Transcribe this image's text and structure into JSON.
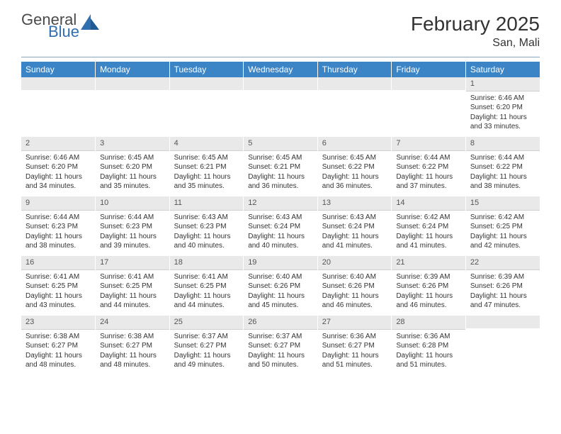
{
  "brand": {
    "line1": "General",
    "line2": "Blue",
    "color1": "#4a4a4a",
    "color2": "#2f6fb0",
    "mark_color": "#2f6fb0"
  },
  "title": "February 2025",
  "location": "San, Mali",
  "colors": {
    "header_bg": "#3b85c6",
    "header_text": "#ffffff",
    "daynum_bg": "#e9e9e9",
    "border": "#8aa6bf"
  },
  "day_headers": [
    "Sunday",
    "Monday",
    "Tuesday",
    "Wednesday",
    "Thursday",
    "Friday",
    "Saturday"
  ],
  "weeks": [
    [
      null,
      null,
      null,
      null,
      null,
      null,
      {
        "n": "1",
        "sr": "Sunrise: 6:46 AM",
        "ss": "Sunset: 6:20 PM",
        "dl": "Daylight: 11 hours and 33 minutes."
      }
    ],
    [
      {
        "n": "2",
        "sr": "Sunrise: 6:46 AM",
        "ss": "Sunset: 6:20 PM",
        "dl": "Daylight: 11 hours and 34 minutes."
      },
      {
        "n": "3",
        "sr": "Sunrise: 6:45 AM",
        "ss": "Sunset: 6:20 PM",
        "dl": "Daylight: 11 hours and 35 minutes."
      },
      {
        "n": "4",
        "sr": "Sunrise: 6:45 AM",
        "ss": "Sunset: 6:21 PM",
        "dl": "Daylight: 11 hours and 35 minutes."
      },
      {
        "n": "5",
        "sr": "Sunrise: 6:45 AM",
        "ss": "Sunset: 6:21 PM",
        "dl": "Daylight: 11 hours and 36 minutes."
      },
      {
        "n": "6",
        "sr": "Sunrise: 6:45 AM",
        "ss": "Sunset: 6:22 PM",
        "dl": "Daylight: 11 hours and 36 minutes."
      },
      {
        "n": "7",
        "sr": "Sunrise: 6:44 AM",
        "ss": "Sunset: 6:22 PM",
        "dl": "Daylight: 11 hours and 37 minutes."
      },
      {
        "n": "8",
        "sr": "Sunrise: 6:44 AM",
        "ss": "Sunset: 6:22 PM",
        "dl": "Daylight: 11 hours and 38 minutes."
      }
    ],
    [
      {
        "n": "9",
        "sr": "Sunrise: 6:44 AM",
        "ss": "Sunset: 6:23 PM",
        "dl": "Daylight: 11 hours and 38 minutes."
      },
      {
        "n": "10",
        "sr": "Sunrise: 6:44 AM",
        "ss": "Sunset: 6:23 PM",
        "dl": "Daylight: 11 hours and 39 minutes."
      },
      {
        "n": "11",
        "sr": "Sunrise: 6:43 AM",
        "ss": "Sunset: 6:23 PM",
        "dl": "Daylight: 11 hours and 40 minutes."
      },
      {
        "n": "12",
        "sr": "Sunrise: 6:43 AM",
        "ss": "Sunset: 6:24 PM",
        "dl": "Daylight: 11 hours and 40 minutes."
      },
      {
        "n": "13",
        "sr": "Sunrise: 6:43 AM",
        "ss": "Sunset: 6:24 PM",
        "dl": "Daylight: 11 hours and 41 minutes."
      },
      {
        "n": "14",
        "sr": "Sunrise: 6:42 AM",
        "ss": "Sunset: 6:24 PM",
        "dl": "Daylight: 11 hours and 41 minutes."
      },
      {
        "n": "15",
        "sr": "Sunrise: 6:42 AM",
        "ss": "Sunset: 6:25 PM",
        "dl": "Daylight: 11 hours and 42 minutes."
      }
    ],
    [
      {
        "n": "16",
        "sr": "Sunrise: 6:41 AM",
        "ss": "Sunset: 6:25 PM",
        "dl": "Daylight: 11 hours and 43 minutes."
      },
      {
        "n": "17",
        "sr": "Sunrise: 6:41 AM",
        "ss": "Sunset: 6:25 PM",
        "dl": "Daylight: 11 hours and 44 minutes."
      },
      {
        "n": "18",
        "sr": "Sunrise: 6:41 AM",
        "ss": "Sunset: 6:25 PM",
        "dl": "Daylight: 11 hours and 44 minutes."
      },
      {
        "n": "19",
        "sr": "Sunrise: 6:40 AM",
        "ss": "Sunset: 6:26 PM",
        "dl": "Daylight: 11 hours and 45 minutes."
      },
      {
        "n": "20",
        "sr": "Sunrise: 6:40 AM",
        "ss": "Sunset: 6:26 PM",
        "dl": "Daylight: 11 hours and 46 minutes."
      },
      {
        "n": "21",
        "sr": "Sunrise: 6:39 AM",
        "ss": "Sunset: 6:26 PM",
        "dl": "Daylight: 11 hours and 46 minutes."
      },
      {
        "n": "22",
        "sr": "Sunrise: 6:39 AM",
        "ss": "Sunset: 6:26 PM",
        "dl": "Daylight: 11 hours and 47 minutes."
      }
    ],
    [
      {
        "n": "23",
        "sr": "Sunrise: 6:38 AM",
        "ss": "Sunset: 6:27 PM",
        "dl": "Daylight: 11 hours and 48 minutes."
      },
      {
        "n": "24",
        "sr": "Sunrise: 6:38 AM",
        "ss": "Sunset: 6:27 PM",
        "dl": "Daylight: 11 hours and 48 minutes."
      },
      {
        "n": "25",
        "sr": "Sunrise: 6:37 AM",
        "ss": "Sunset: 6:27 PM",
        "dl": "Daylight: 11 hours and 49 minutes."
      },
      {
        "n": "26",
        "sr": "Sunrise: 6:37 AM",
        "ss": "Sunset: 6:27 PM",
        "dl": "Daylight: 11 hours and 50 minutes."
      },
      {
        "n": "27",
        "sr": "Sunrise: 6:36 AM",
        "ss": "Sunset: 6:27 PM",
        "dl": "Daylight: 11 hours and 51 minutes."
      },
      {
        "n": "28",
        "sr": "Sunrise: 6:36 AM",
        "ss": "Sunset: 6:28 PM",
        "dl": "Daylight: 11 hours and 51 minutes."
      },
      null
    ]
  ]
}
